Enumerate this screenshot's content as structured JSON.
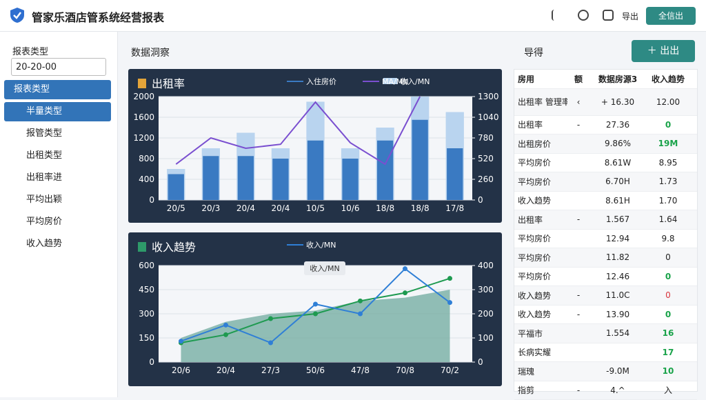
{
  "header": {
    "title": "管家乐酒店管系统经营报表",
    "export": "导出",
    "button": "全信出"
  },
  "sidebar": {
    "label": "报表类型",
    "input": "20-20-00",
    "active": "报表类型",
    "items": [
      "半量类型",
      "报管类型",
      "出租类型",
      "出租率进",
      "平均出颖",
      "平均房价",
      "收入趋势"
    ]
  },
  "main": {
    "heading": "数据洞察",
    "sub": "导得",
    "button": "出出"
  },
  "charts": [
    {
      "type": "bar",
      "title": "出租率",
      "categories": [
        "20/5",
        "20/3",
        "20/4",
        "20/4",
        "10/5",
        "10/6",
        "18/8",
        "18/8",
        "17/8"
      ],
      "ylim": [
        0,
        2000
      ],
      "yticks": [
        0,
        400,
        800,
        1200,
        1600,
        2000
      ],
      "y2lim": [
        0,
        1300
      ],
      "y2ticks": [
        0,
        260,
        520,
        780,
        1040,
        1300
      ],
      "grid": true,
      "series": [
        {
          "name": "收入/MN",
          "color": "#b9d4ef",
          "kind": "bar",
          "values": [
            600,
            1000,
            1300,
            1000,
            1900,
            1000,
            1400,
            2000,
            1700
          ]
        },
        {
          "name": "入住房价",
          "color": "#3a7ac2",
          "kind": "bar",
          "values": [
            500,
            850,
            850,
            800,
            1150,
            800,
            1150,
            1550,
            1000
          ]
        },
        {
          "name": "MA/MN",
          "color": "#7a4fd0",
          "kind": "line",
          "axis": "y2",
          "values": [
            450,
            780,
            650,
            700,
            1230,
            720,
            450,
            1300,
            null
          ]
        }
      ]
    },
    {
      "type": "line",
      "title": "收入趋势",
      "categories": [
        "20/6",
        "20/4",
        "27/3",
        "50/6",
        "47/8",
        "70/8",
        "70/2"
      ],
      "ylim": [
        0,
        600
      ],
      "yticks": [
        0,
        150,
        300,
        450,
        600
      ],
      "y2lim": [
        0,
        400
      ],
      "y2ticks": [
        0,
        100,
        200,
        300,
        400
      ],
      "grid": true,
      "annotation": "收入/MN",
      "series": [
        {
          "color": "#6fa99e",
          "kind": "area",
          "values": [
            150,
            250,
            300,
            320,
            380,
            400,
            450
          ]
        },
        {
          "color": "#1e9a50",
          "kind": "line",
          "values": [
            120,
            170,
            270,
            300,
            380,
            430,
            520
          ]
        },
        {
          "name": "收入/MN",
          "color": "#2f7fd6",
          "kind": "line",
          "values": [
            130,
            230,
            120,
            360,
            300,
            580,
            370
          ]
        }
      ]
    }
  ],
  "table": {
    "header": [
      "房用",
      "额",
      "数据房源3",
      "收入趋势"
    ],
    "rows": [
      {
        "cells": [
          "出租率 管理率",
          "‹",
          "+ 16.30",
          "12.00"
        ]
      },
      {
        "cells": [
          "出租率",
          "-",
          "27.36",
          "0"
        ],
        "tone": "up"
      },
      {
        "cells": [
          "出租房价",
          "",
          "9.86%",
          "19M"
        ],
        "tone": "up"
      },
      {
        "cells": [
          "平均房价",
          "",
          "8.61W",
          "8.95"
        ]
      },
      {
        "cells": [
          "平均房价",
          "",
          "6.70H",
          "1.73"
        ]
      },
      {
        "cells": [
          "收入趋势",
          "",
          "8.61H",
          "1.70"
        ]
      },
      {
        "cells": [
          "出租率",
          "-",
          "1.567",
          "1.64"
        ]
      },
      {
        "cells": [
          "平均房价",
          "",
          "12.94",
          "9.8"
        ]
      },
      {
        "cells": [
          "平均房价",
          "",
          "11.82",
          "0"
        ]
      },
      {
        "cells": [
          "平均房价",
          "",
          "12.46",
          "0"
        ],
        "tone": "up"
      },
      {
        "cells": [
          "收入趋势",
          "-",
          "11.0C",
          "0"
        ],
        "tone": "down"
      },
      {
        "cells": [
          "收入趋势",
          "-",
          "13.90",
          "0"
        ],
        "tone": "up"
      },
      {
        "cells": [
          "平福市",
          "",
          "1.554",
          "16"
        ],
        "tone": "up"
      },
      {
        "cells": [
          "长病实耀",
          "",
          "",
          "17"
        ],
        "tone": "up"
      },
      {
        "cells": [
          "瑞瑰",
          "",
          "-9.0M",
          "10"
        ],
        "tone": "up"
      },
      {
        "cells": [
          "指剪",
          "-",
          "4.^",
          "入"
        ]
      }
    ]
  }
}
